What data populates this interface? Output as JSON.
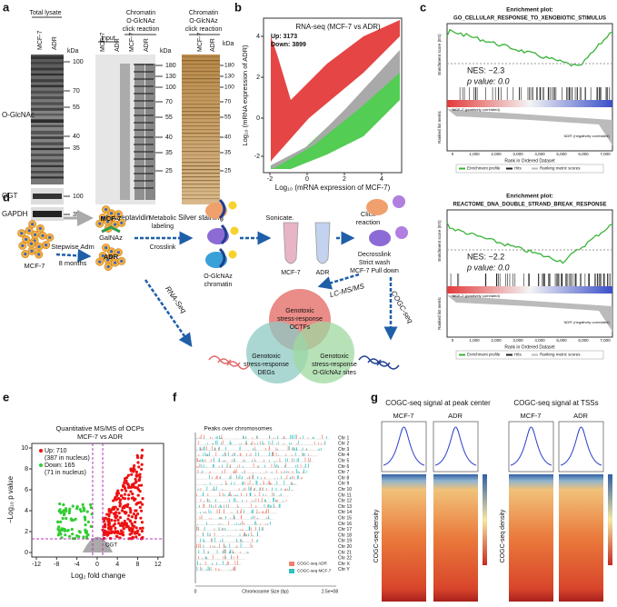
{
  "a": {
    "label": "a",
    "total_lysate": "Total lysate",
    "lanes_lysate": [
      "MCF-7",
      "ADR"
    ],
    "kda": "kDa",
    "markers_lysate": [
      100,
      70,
      55,
      40,
      35
    ],
    "o_glcnac": "O-GlcNAc",
    "ogt": "OGT",
    "ogt_marker": 100,
    "gapdh": "GAPDH",
    "gapdh_marker": 35,
    "input": "Input",
    "chromatin": [
      "Chromatin",
      "O-GlcNAz",
      "click reaction"
    ],
    "lanes_ib": [
      "MCF-7",
      "ADR",
      "MCF-7",
      "ADR"
    ],
    "kda_ib": "kDa",
    "markers_ib": [
      180,
      130,
      100,
      70,
      55,
      40,
      35,
      25
    ],
    "ib": "IB streptavidin",
    "chromatin_silver": [
      "Chromatin",
      "O-GlcNAz",
      "click reaction"
    ],
    "lanes_silver": [
      "MCF-7",
      "ADR"
    ],
    "kda_silver": "kDa",
    "markers_silver": [
      180,
      130,
      100,
      70,
      55,
      40,
      35,
      25
    ],
    "silver": "Silver staining"
  },
  "b": {
    "label": "b",
    "title": "RNA-seq (MCF-7 vs ADR)",
    "up": "Up: 3173",
    "down": "Down: 3899",
    "y_label": "Log₁₀ (mRNA expression of ADR)",
    "x_label": "Log₁₀ (mRNA expression of MCF-7)",
    "xticks": [
      -2,
      0,
      2,
      4
    ],
    "yticks": [
      4,
      2,
      0,
      -2
    ]
  },
  "c": {
    "label": "c",
    "plots": [
      {
        "heading": "Enrichment plot:",
        "title": "GO_CELLULAR_RESPONSE_TO_XENOBIOTIC_STIMULUS",
        "nes": "NES: −2.3",
        "p": "p value: 0.0",
        "es_label": "Enrichment score (ES)",
        "metric_label": "Ranked list metric",
        "pos": "'MCF-7' (positively correlated)",
        "neg": "'ADR' (negatively correlated)",
        "x_label": "Rank in Ordered Dataset",
        "xticks": [
          "0",
          "1,000",
          "2,000",
          "3,000",
          "4,000",
          "5,000",
          "6,000",
          "7,000"
        ],
        "legend": [
          "Enrichment profile",
          "Hits",
          "Ranking metric scores"
        ]
      },
      {
        "heading": "Enrichment plot:",
        "title": "REACTOME_DNA_DOUBLE_STRAND_BREAK_RESPONSE",
        "nes": "NES: −2.2",
        "p": "p value: 0.0",
        "es_label": "Enrichment score (ES)",
        "metric_label": "Ranked list metric",
        "pos": "'MCF-7' (positively correlated)",
        "neg": "'ADR' (negatively correlated)",
        "x_label": "Rank in Ordered Dataset",
        "xticks": [
          "0",
          "1,000",
          "2,000",
          "3,000",
          "4,000",
          "5,000",
          "6,000",
          "7,000"
        ],
        "legend": [
          "Enrichment profile",
          "Hits",
          "Ranking metric scores"
        ]
      }
    ]
  },
  "d": {
    "label": "d",
    "mcf7_start": "MCF-7",
    "stepwise": "Stepwise Adm",
    "months": "8 months",
    "mcf7": "MCF-7",
    "galnaz": "GalNAz",
    "adr": "ADR",
    "metabolic": [
      "Metabolic",
      "labeling"
    ],
    "crosslink": "Crosslink",
    "chromatin": [
      "O-GlcNAz",
      "chromatin"
    ],
    "sonicate": "Sonicate.",
    "tube_mcf7": "MCF-7",
    "tube_adr": "ADR",
    "click": [
      "Click",
      "reaction"
    ],
    "steps": [
      "Decrosslink",
      "Strict wash",
      "MCF-7 Pull down"
    ],
    "rnaseq": "RNA-Seq",
    "lcms": "LC-MS/MS",
    "cogcseq": "COGC-seq",
    "octfs": [
      "Genotoxic",
      "stress-response",
      "OCTFs"
    ],
    "degs": [
      "Genotoxic",
      "stress-response",
      "DEGs"
    ],
    "sites": [
      "Genotoxic",
      "stress-response",
      "O-GlcNAz sites"
    ]
  },
  "e": {
    "label": "e",
    "title": [
      "Quantitative MS/MS of OCPs",
      "MCF-7 vs ADR"
    ],
    "up": "Up: 710",
    "up_nucleus": "(387 in nucleus)",
    "down": "Down: 165",
    "down_nucleus": "(71 in nucleus)",
    "y_label": "−Log₁₀ p value",
    "x_label": "Log₂ fold change",
    "xticks": [
      -12,
      -8,
      -4,
      0,
      4,
      8,
      12
    ],
    "yticks": [
      0,
      2,
      4,
      6,
      8,
      10
    ],
    "ogt": "OGT"
  },
  "f": {
    "label": "f",
    "title": "Peaks over chromosomes",
    "chromosomes": [
      "Chr 1",
      "Chr 2",
      "Chr 3",
      "Chr 4",
      "Chr 5",
      "Chr 6",
      "Chr 7",
      "Chr 8",
      "Chr 9",
      "Chr 10",
      "Chr 11",
      "Chr 12",
      "Chr 13",
      "Chr 14",
      "Chr 15",
      "Chr 16",
      "Chr 17",
      "Chr 18",
      "Chr 19",
      "Chr 20",
      "Chr 21",
      "Chr 22",
      "Chr X",
      "Chr Y"
    ],
    "legend": [
      "COGC-seq ADR",
      "COGC-seq MCF-7"
    ],
    "x_start": "0",
    "x_end": "2.5e+08",
    "x_label": "Chromosome Size (bp)"
  },
  "g": {
    "label": "g",
    "peak_title": "COGC-seq signal at peak center",
    "tss_title": "COGC-seq signal at TSSs",
    "samples": [
      "MCF-7",
      "ADR",
      "MCF-7",
      "ADR"
    ],
    "density": "COGC-seq density"
  }
}
